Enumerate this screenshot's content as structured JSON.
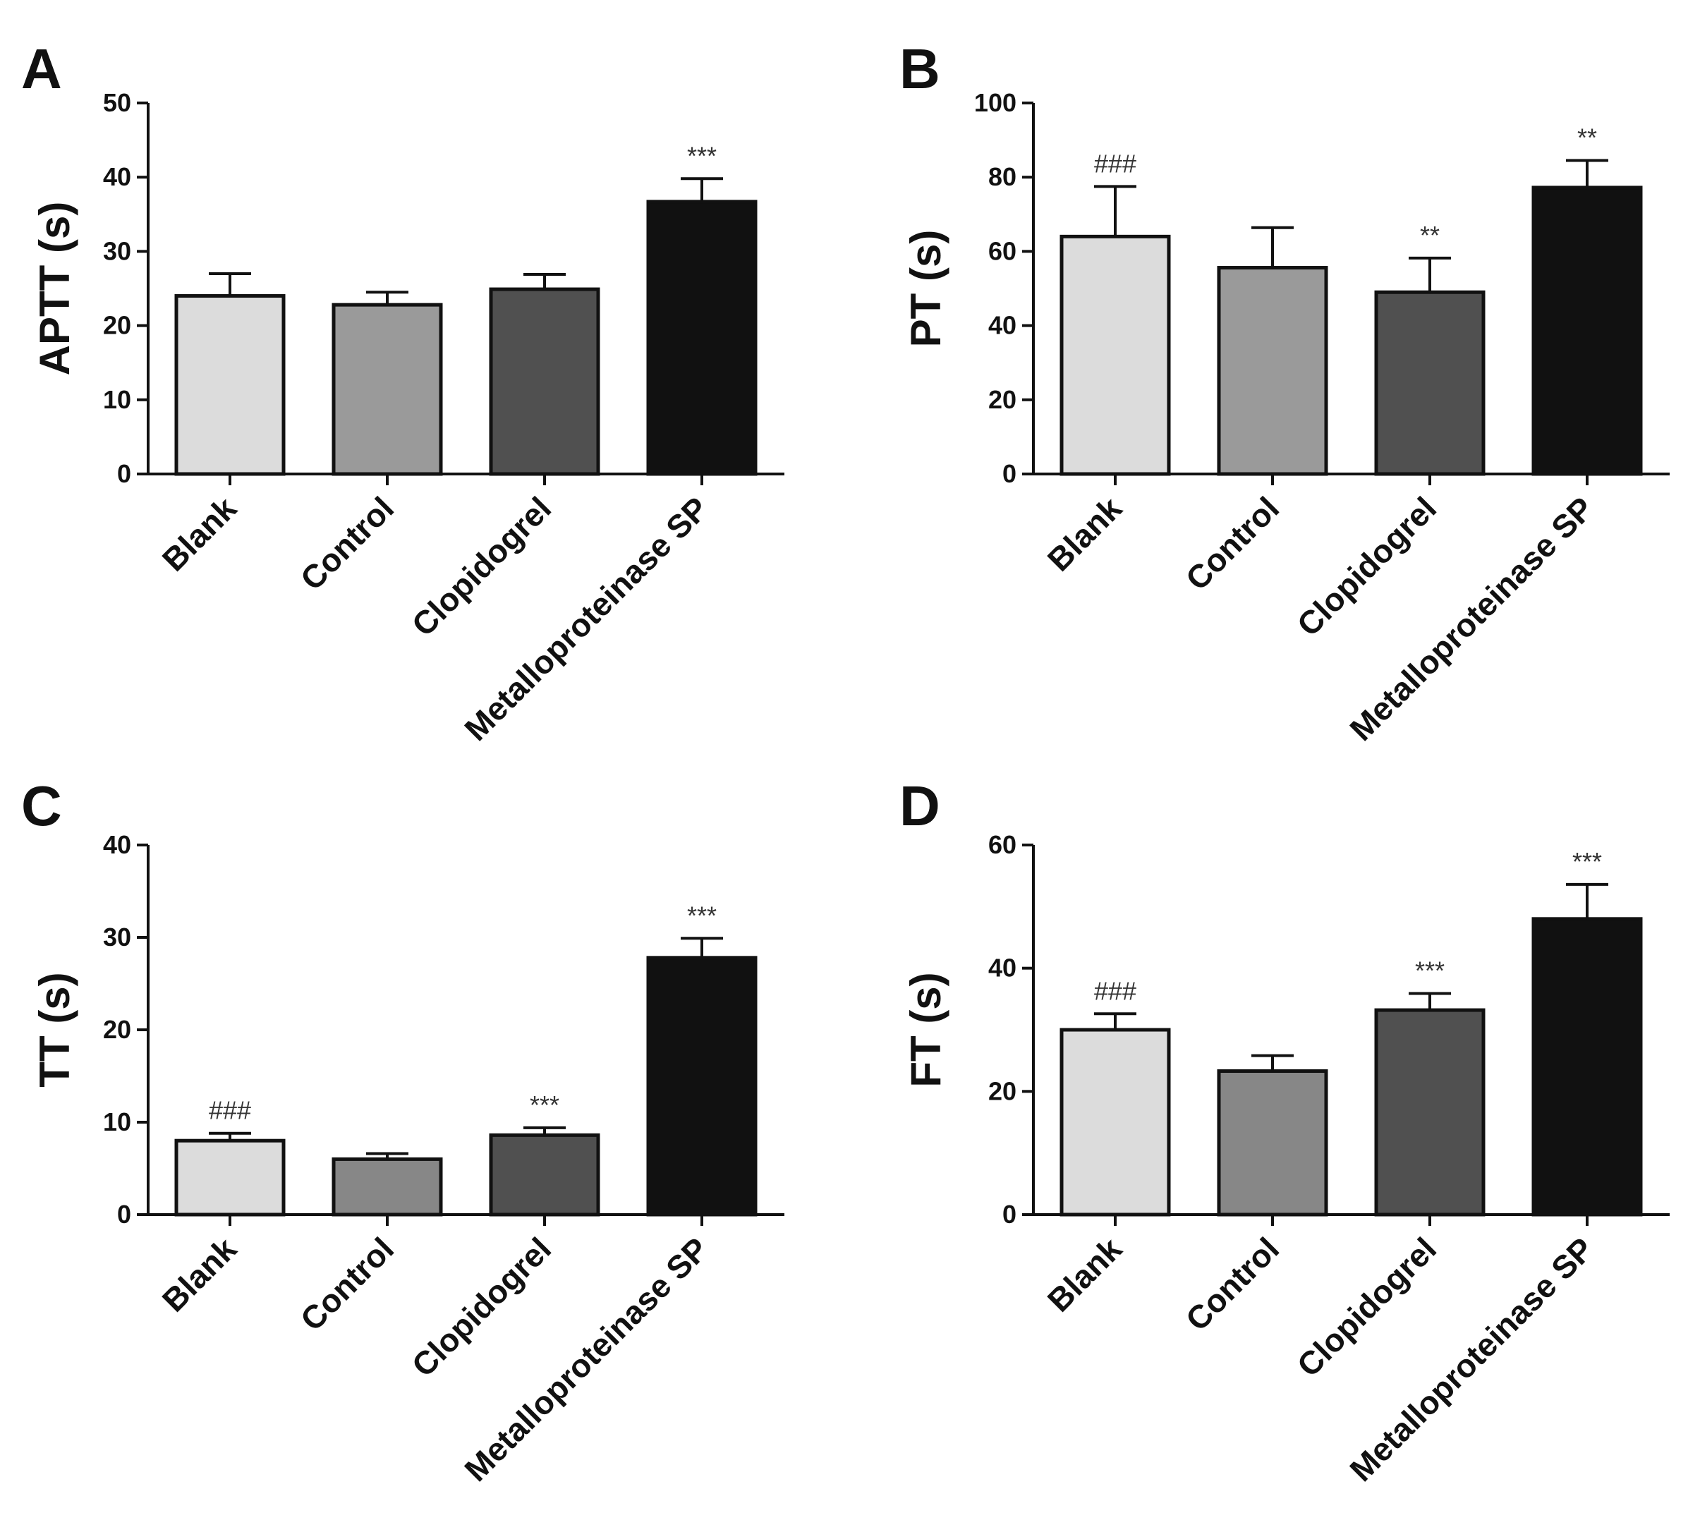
{
  "figure": {
    "colors": {
      "axis": "#111111",
      "bar_outline": "#111111",
      "significance_text": "#333333"
    }
  },
  "chart_data": [
    {
      "panel": "A",
      "type": "bar",
      "ylabel": "APTT  (s)",
      "ylim": [
        0,
        50
      ],
      "yticks": [
        0,
        10,
        20,
        30,
        40,
        50
      ],
      "categories": [
        "Blank",
        "Control",
        "Clopidogrel",
        "Metalloproteinase SP"
      ],
      "values": [
        24.0,
        22.8,
        24.9,
        36.7
      ],
      "errors": [
        3.0,
        1.7,
        2.0,
        3.1
      ],
      "significance": [
        "",
        "",
        "",
        "***"
      ],
      "bar_colors": [
        "#dcdcdc",
        "#9a9a9a",
        "#505050",
        "#111111"
      ]
    },
    {
      "panel": "B",
      "type": "bar",
      "ylabel": "PT (s)",
      "ylim": [
        0,
        100
      ],
      "yticks": [
        0,
        20,
        40,
        60,
        80,
        100
      ],
      "categories": [
        "Blank",
        "Control",
        "Clopidogrel",
        "Metalloproteinase SP"
      ],
      "values": [
        64.0,
        55.6,
        49.0,
        77.2
      ],
      "errors": [
        13.5,
        10.8,
        9.2,
        7.3
      ],
      "significance": [
        "###",
        "",
        "**",
        "**"
      ],
      "bar_colors": [
        "#dcdcdc",
        "#9a9a9a",
        "#505050",
        "#111111"
      ]
    },
    {
      "panel": "C",
      "type": "bar",
      "ylabel": "TT (s)",
      "ylim": [
        0,
        40
      ],
      "yticks": [
        0,
        10,
        20,
        30,
        40
      ],
      "categories": [
        "Blank",
        "Control",
        "Clopidogrel",
        "Metalloproteinase SP"
      ],
      "values": [
        8.0,
        6.0,
        8.6,
        27.8
      ],
      "errors": [
        0.8,
        0.6,
        0.8,
        2.1
      ],
      "significance": [
        "###",
        "",
        "***",
        "***"
      ],
      "bar_colors": [
        "#dcdcdc",
        "#878787",
        "#505050",
        "#111111"
      ]
    },
    {
      "panel": "D",
      "type": "bar",
      "ylabel": "FT (s)",
      "ylim": [
        0,
        60
      ],
      "yticks": [
        0,
        20,
        40,
        60
      ],
      "categories": [
        "Blank",
        "Control",
        "Clopidogrel",
        "Metalloproteinase SP"
      ],
      "values": [
        30.0,
        23.3,
        33.2,
        48.0
      ],
      "errors": [
        2.6,
        2.5,
        2.7,
        5.6
      ],
      "significance": [
        "###",
        "",
        "***",
        "***"
      ],
      "bar_colors": [
        "#dcdcdc",
        "#878787",
        "#505050",
        "#111111"
      ]
    }
  ]
}
